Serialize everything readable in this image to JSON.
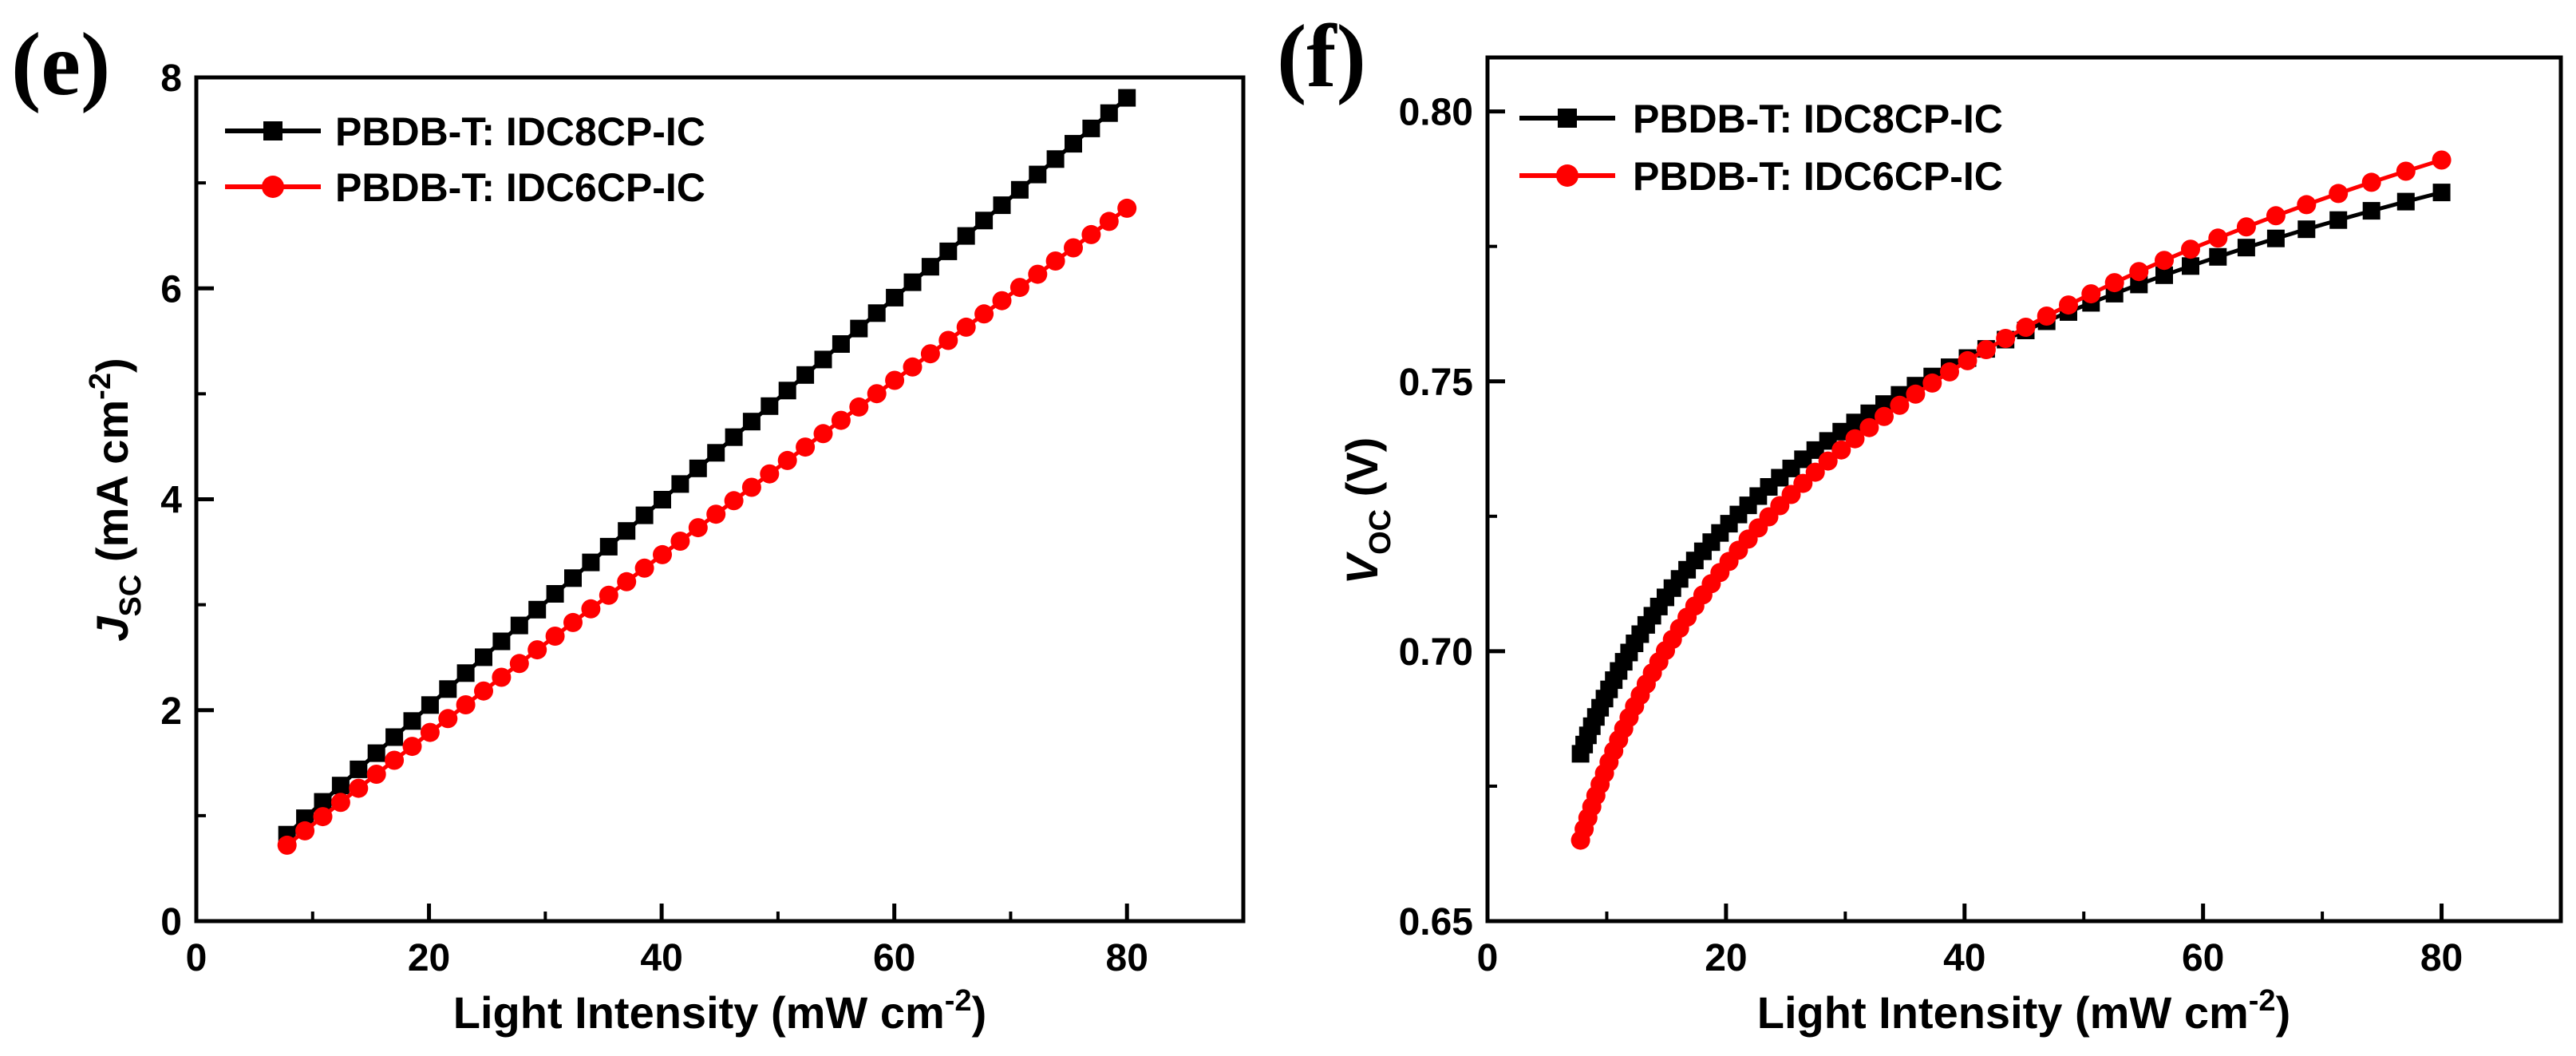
{
  "chart_data": [
    {
      "panel": "(e)",
      "type": "line",
      "ylabel": "J",
      "ylabel_sub": "SC",
      "ylabel_unit_pre": " (mA cm",
      "ylabel_unit_sup": "-2",
      "ylabel_unit_post": ")",
      "xlabel": "Light Intensity (mW cm",
      "xlabel_sup": "-2",
      "xlabel_post": ")",
      "xlim": [
        0,
        90
      ],
      "ylim": [
        0,
        8
      ],
      "xticks": [
        0,
        20,
        40,
        60,
        80
      ],
      "yticks": [
        0,
        2,
        4,
        6,
        8
      ],
      "xtick_labels": [
        "0",
        "20",
        "40",
        "60",
        "80"
      ],
      "ytick_labels": [
        "0",
        "2",
        "4",
        "6",
        "8"
      ],
      "legend_position": "top-left",
      "grid": false,
      "series": [
        {
          "name": "PBDB-T: IDC8CP-IC",
          "color": "#000000",
          "marker": "square",
          "model": "power",
          "x_range": [
            7.8,
            80
          ],
          "y_range": [
            0.82,
            7.4
          ],
          "exponent": 0.968,
          "num_points": 48
        },
        {
          "name": "PBDB-T: IDC6CP-IC",
          "color": "#ff0000",
          "marker": "circle",
          "model": "power",
          "x_range": [
            7.8,
            80
          ],
          "y_range": [
            0.72,
            6.74
          ],
          "exponent": 0.962,
          "num_points": 48
        }
      ]
    },
    {
      "panel": "(f)",
      "type": "line",
      "ylabel": "V",
      "ylabel_sub": "OC",
      "ylabel_unit_pre": " (V)",
      "ylabel_unit_sup": "",
      "ylabel_unit_post": "",
      "xlabel": "Light Intensity (mW cm",
      "xlabel_sup": "-2",
      "xlabel_post": ")",
      "xlim": [
        0,
        90
      ],
      "ylim": [
        0.65,
        0.81
      ],
      "xticks": [
        0,
        20,
        40,
        60,
        80
      ],
      "yticks": [
        0.65,
        0.7,
        0.75,
        0.8
      ],
      "xtick_labels": [
        "0",
        "20",
        "40",
        "60",
        "80"
      ],
      "ytick_labels": [
        "0.65",
        "0.70",
        "0.75",
        "0.80"
      ],
      "legend_position": "top-left",
      "grid": false,
      "series": [
        {
          "name": "PBDB-T: IDC8CP-IC",
          "color": "#000000",
          "marker": "square",
          "model": "log",
          "x_range": [
            7.8,
            80
          ],
          "y_range": [
            0.681,
            0.785
          ],
          "num_points": 62
        },
        {
          "name": "PBDB-T: IDC6CP-IC",
          "color": "#ff0000",
          "marker": "circle",
          "model": "log",
          "x_range": [
            7.8,
            80
          ],
          "y_range": [
            0.665,
            0.791
          ],
          "num_points": 62
        }
      ]
    }
  ]
}
